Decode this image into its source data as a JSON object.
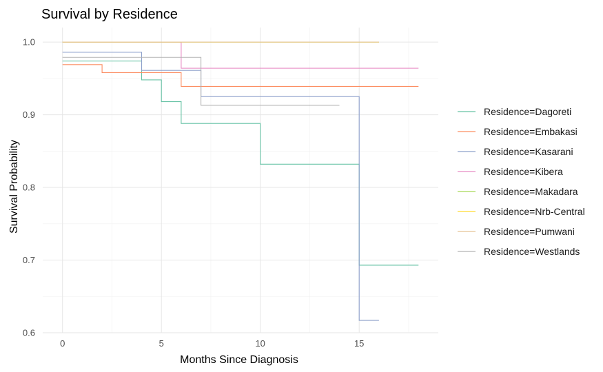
{
  "chart_data": {
    "type": "line",
    "step": true,
    "title": "Survival by Residence",
    "xlabel": "Months Since Diagnosis",
    "ylabel": "Survival Probability",
    "xlim": [
      -1,
      19
    ],
    "ylim": [
      0.6,
      1.02
    ],
    "x_ticks": [
      0,
      5,
      10,
      15
    ],
    "x_tick_labels": [
      "0",
      "5",
      "10",
      "15"
    ],
    "y_ticks": [
      0.6,
      0.7,
      0.8,
      0.9,
      1.0
    ],
    "y_tick_labels": [
      "0.6",
      "0.7",
      "0.8",
      "0.9",
      "1.0"
    ],
    "grid": true,
    "legend_position": "right",
    "series": [
      {
        "name": "Residence=Dagoreti",
        "color": "#66C2A5",
        "points": [
          [
            0,
            0.974
          ],
          [
            4,
            0.974
          ],
          [
            4,
            0.948
          ],
          [
            5,
            0.948
          ],
          [
            5,
            0.918
          ],
          [
            6,
            0.918
          ],
          [
            6,
            0.888
          ],
          [
            10,
            0.888
          ],
          [
            10,
            0.832
          ],
          [
            15,
            0.832
          ],
          [
            15,
            0.693
          ],
          [
            18,
            0.693
          ]
        ]
      },
      {
        "name": "Residence=Embakasi",
        "color": "#FC8D62",
        "points": [
          [
            0,
            0.969
          ],
          [
            2,
            0.969
          ],
          [
            2,
            0.958
          ],
          [
            6,
            0.958
          ],
          [
            6,
            0.939
          ],
          [
            18,
            0.939
          ]
        ]
      },
      {
        "name": "Residence=Kasarani",
        "color": "#8DA0CB",
        "points": [
          [
            0,
            0.986
          ],
          [
            4,
            0.986
          ],
          [
            4,
            0.961
          ],
          [
            7,
            0.961
          ],
          [
            7,
            0.925
          ],
          [
            15,
            0.925
          ],
          [
            15,
            0.617
          ],
          [
            16,
            0.617
          ]
        ]
      },
      {
        "name": "Residence=Kibera",
        "color": "#E78AC3",
        "points": [
          [
            0,
            1.0
          ],
          [
            6,
            1.0
          ],
          [
            6,
            0.964
          ],
          [
            18,
            0.964
          ]
        ]
      },
      {
        "name": "Residence=Makadara",
        "color": "#A6D854",
        "points": [
          [
            0,
            1.0
          ],
          [
            16,
            1.0
          ]
        ]
      },
      {
        "name": "Residence=Nrb-Central",
        "color": "#FFD92F",
        "points": [
          [
            0,
            1.0
          ],
          [
            16,
            1.0
          ]
        ]
      },
      {
        "name": "Residence=Pumwani",
        "color": "#E5C494",
        "points": [
          [
            0,
            1.0
          ],
          [
            16,
            1.0
          ]
        ]
      },
      {
        "name": "Residence=Westlands",
        "color": "#B3B3B3",
        "points": [
          [
            0,
            0.979
          ],
          [
            7,
            0.979
          ],
          [
            7,
            0.913
          ],
          [
            14,
            0.913
          ]
        ]
      }
    ]
  }
}
